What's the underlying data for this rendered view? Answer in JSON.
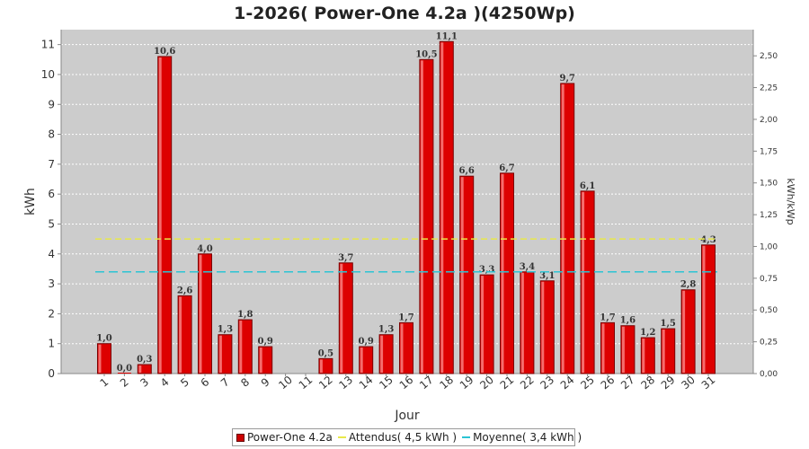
{
  "title": "1-2026( Power-One 4.2a )(4250Wp)",
  "colors": {
    "bar": "#dd0000",
    "bar_edge": "#7a0000",
    "attendus": "#e8e84a",
    "moyenne": "#2bc4d4",
    "plot_bg": "#cccccc",
    "grid": "#ffffff"
  },
  "chart_data": {
    "type": "bar",
    "title": "1-2026( Power-One 4.2a )(4250Wp)",
    "xlabel": "Jour",
    "ylabel": "kWh",
    "y2label": "kWh/kWp",
    "ylim": [
      0,
      11.5
    ],
    "y2lim": [
      0,
      2.706
    ],
    "yticks": [
      0,
      1,
      2,
      3,
      4,
      5,
      6,
      7,
      8,
      9,
      10,
      11
    ],
    "y2ticks": [
      "0,00",
      "0,25",
      "0,50",
      "0,75",
      "1,00",
      "1,25",
      "1,50",
      "1,75",
      "2,00",
      "2,25",
      "2,50"
    ],
    "grid": true,
    "legend_position": "bottom",
    "categories": [
      "1",
      "2",
      "3",
      "4",
      "5",
      "6",
      "7",
      "8",
      "9",
      "10",
      "11",
      "12",
      "13",
      "14",
      "15",
      "16",
      "17",
      "18",
      "19",
      "20",
      "21",
      "22",
      "23",
      "24",
      "25",
      "26",
      "27",
      "28",
      "29",
      "30",
      "31"
    ],
    "series": [
      {
        "name": "Power-One 4.2a",
        "values": [
          1.0,
          0.0,
          0.3,
          10.6,
          2.6,
          4.0,
          1.3,
          1.8,
          0.9,
          null,
          null,
          0.5,
          3.7,
          0.9,
          1.3,
          1.7,
          10.5,
          11.1,
          6.6,
          3.3,
          6.7,
          3.4,
          3.1,
          9.7,
          6.1,
          1.7,
          1.6,
          1.2,
          1.5,
          2.8,
          4.3
        ],
        "labels": [
          "1,0",
          "0,0",
          "0,3",
          "10,6",
          "2,6",
          "4,0",
          "1,3",
          "1,8",
          "0,9",
          "",
          "",
          "0,5",
          "3,7",
          "0,9",
          "1,3",
          "1,7",
          "10,5",
          "11,1",
          "6,6",
          "3,3",
          "6,7",
          "3,4",
          "3,1",
          "9,7",
          "6,1",
          "1,7",
          "1,6",
          "1,2",
          "1,5",
          "2,8",
          "4,3"
        ]
      }
    ],
    "reference_lines": [
      {
        "name": "Attendus( 4,5 kWh )",
        "value": 4.5,
        "style": "dashed"
      },
      {
        "name": "Moyenne( 3,4 kWh )",
        "value": 3.4,
        "style": "dashed"
      }
    ]
  },
  "legend": {
    "bar_label": "Power-One 4.2a",
    "attendus_label": "Attendus( 4,5 kWh )",
    "moyenne_label": "Moyenne( 3,4 kWh )"
  }
}
